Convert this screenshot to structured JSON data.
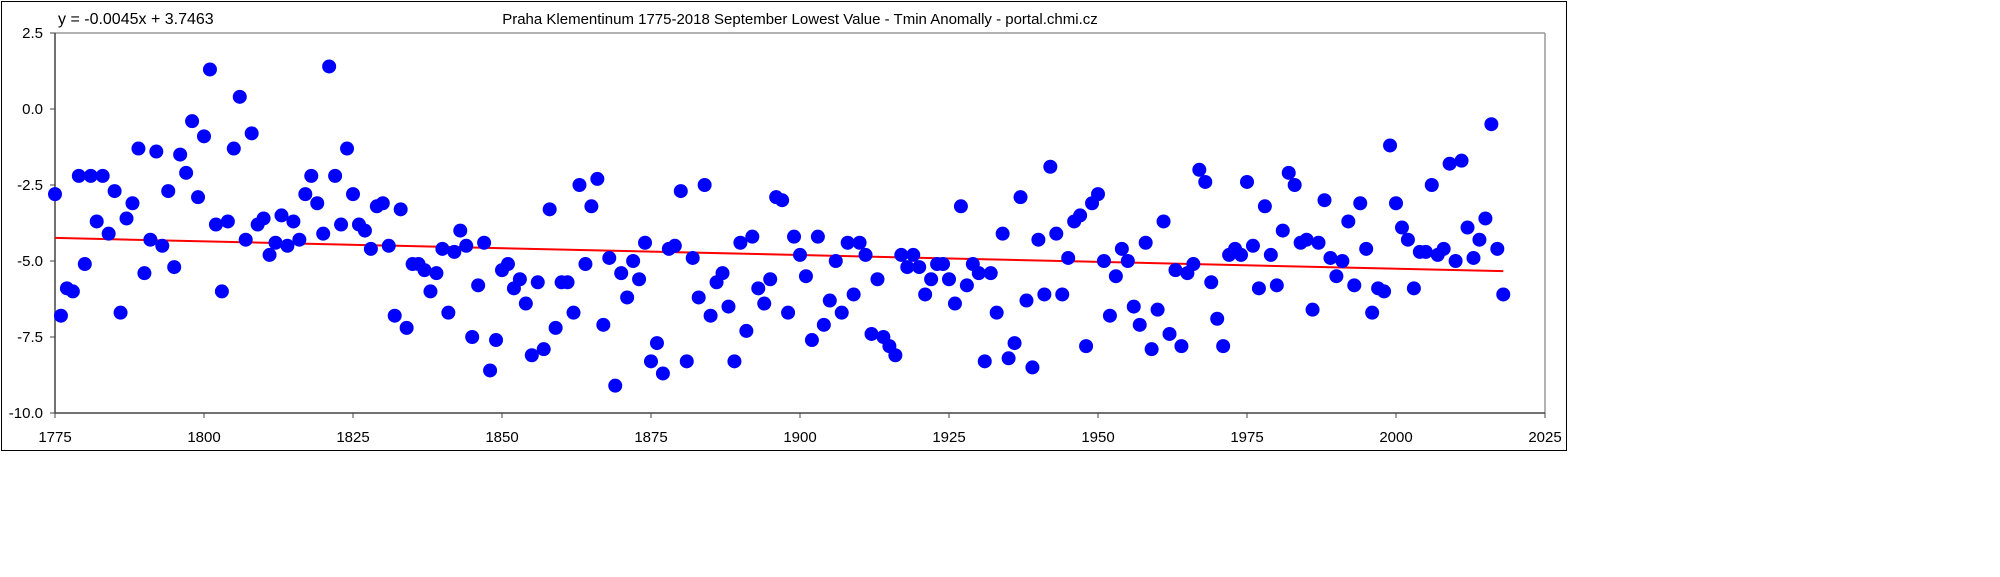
{
  "chart_data": {
    "type": "scatter",
    "title": "Praha Klementinum 1775-2018 September Lowest Value - Tmin Anomally - portal.chmi.cz",
    "equation": "y = -0.0045x + 3.7463",
    "xlabel": "",
    "ylabel": "",
    "xlim": [
      1775,
      2025
    ],
    "ylim": [
      -10,
      2.5
    ],
    "xticks": [
      "1775",
      "1800",
      "1825",
      "1850",
      "1875",
      "1900",
      "1925",
      "1950",
      "1975",
      "2000",
      "2025"
    ],
    "yticks": [
      "2.5",
      "0.0",
      "-2.5",
      "-5.0",
      "-7.5",
      "-10.0"
    ],
    "grid": false,
    "marker_color": "#0000FF",
    "trend_color": "#FF0000",
    "trend": {
      "slope": -0.0045,
      "intercept": 3.7463,
      "x_range": [
        1775,
        2018
      ]
    },
    "x_start": 1775,
    "values": [
      -2.8,
      -6.8,
      -5.9,
      -6.0,
      -2.2,
      -5.1,
      -2.2,
      -3.7,
      -2.2,
      -4.1,
      -2.7,
      -6.7,
      -3.6,
      -3.1,
      -1.3,
      -5.4,
      -4.3,
      -1.4,
      -4.5,
      -2.7,
      -5.2,
      -1.5,
      -2.1,
      -0.4,
      -2.9,
      -0.9,
      1.3,
      -3.8,
      -6.0,
      -3.7,
      -1.3,
      0.4,
      -4.3,
      -0.8,
      -3.8,
      -3.6,
      -4.8,
      -4.4,
      -3.5,
      -4.5,
      -3.7,
      -4.3,
      -2.8,
      -2.2,
      -3.1,
      -4.1,
      1.4,
      -2.2,
      -3.8,
      -1.3,
      -2.8,
      -3.8,
      -4.0,
      -4.6,
      -3.2,
      -3.1,
      -4.5,
      -6.8,
      -3.3,
      -7.2,
      -5.1,
      -5.1,
      -5.3,
      -6.0,
      -5.4,
      -4.6,
      -6.7,
      -4.7,
      -4.0,
      -4.5,
      -7.5,
      -5.8,
      -4.4,
      -8.6,
      -7.6,
      -5.3,
      -5.1,
      -5.9,
      -5.6,
      -6.4,
      -8.1,
      -5.7,
      -7.9,
      -3.3,
      -7.2,
      -5.7,
      -5.7,
      -6.7,
      -2.5,
      -5.1,
      -3.2,
      -2.3,
      -7.1,
      -4.9,
      -9.1,
      -5.4,
      -6.2,
      -5.0,
      -5.6,
      -4.4,
      -8.3,
      -7.7,
      -8.7,
      -4.6,
      -4.5,
      -2.7,
      -8.3,
      -4.9,
      -6.2,
      -2.5,
      -6.8,
      -5.7,
      -5.4,
      -6.5,
      -8.3,
      -4.4,
      -7.3,
      -4.2,
      -5.9,
      -6.4,
      -5.6,
      -2.9,
      -3.0,
      -6.7,
      -4.2,
      -4.8,
      -5.5,
      -7.6,
      -4.2,
      -7.1,
      -6.3,
      -5.0,
      -6.7,
      -4.4,
      -6.1,
      -4.4,
      -4.8,
      -7.4,
      -5.6,
      -7.5,
      -7.8,
      -8.1,
      -4.8,
      -5.2,
      -4.8,
      -5.2,
      -6.1,
      -5.6,
      -5.1,
      -5.1,
      -5.6,
      -6.4,
      -3.2,
      -5.8,
      -5.1,
      -5.4,
      -8.3,
      -5.4,
      -6.7,
      -4.1,
      -8.2,
      -7.7,
      -2.9,
      -6.3,
      -8.5,
      -4.3,
      -6.1,
      -1.9,
      -4.1,
      -6.1,
      -4.9,
      -3.7,
      -3.5,
      -7.8,
      -3.1,
      -2.8,
      -5.0,
      -6.8,
      -5.5,
      -4.6,
      -5.0,
      -6.5,
      -7.1,
      -4.4,
      -7.9,
      -6.6,
      -3.7,
      -7.4,
      -5.3,
      -7.8,
      -5.4,
      -5.1,
      -2.0,
      -2.4,
      -5.7,
      -6.9,
      -7.8,
      -4.8,
      -4.6,
      -4.8,
      -2.4,
      -4.5,
      -5.9,
      -3.2,
      -4.8,
      -5.8,
      -4.0,
      -2.1,
      -2.5,
      -4.4,
      -4.3,
      -6.6,
      -4.4,
      -3.0,
      -4.9,
      -5.5,
      -5.0,
      -3.7,
      -5.8,
      -3.1,
      -4.6,
      -6.7,
      -5.9,
      -6.0,
      -1.2,
      -3.1,
      -3.9,
      -4.3,
      -5.9,
      -4.7,
      -4.7,
      -2.5,
      -4.8,
      -4.6,
      -1.8,
      -5.0,
      -1.7,
      -3.9,
      -4.9,
      -4.3,
      -3.6,
      -0.5,
      -4.6,
      -6.1
    ]
  }
}
